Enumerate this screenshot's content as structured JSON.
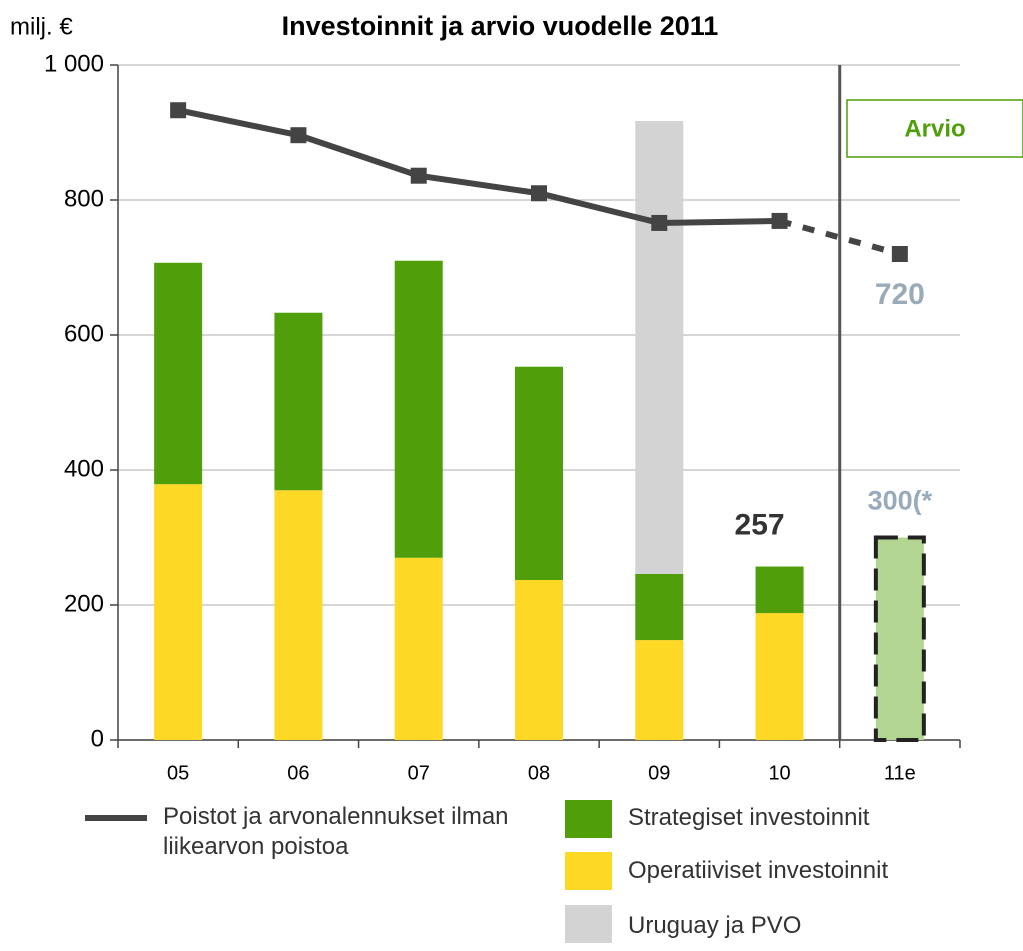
{
  "chart_data": {
    "type": "bar",
    "title": "Investoinnit ja arvio vuodelle 2011",
    "y_label": "milj. €",
    "categories": [
      "05",
      "06",
      "07",
      "08",
      "09",
      "10",
      "11e"
    ],
    "ylim": [
      0,
      1000
    ],
    "yticks": [
      0,
      200,
      400,
      600,
      800,
      {
        "value": 1000,
        "label": "1 000"
      }
    ],
    "grid": true,
    "series": [
      {
        "name": "Operatiiviset investoinnit",
        "color": "#fdd825",
        "values": [
          379,
          370,
          270,
          237,
          148,
          188,
          null
        ]
      },
      {
        "name": "Strategiset investoinnit",
        "color": "#4f9e0a",
        "values": [
          328,
          263,
          440,
          316,
          98,
          69,
          null
        ]
      },
      {
        "name": "Uruguay ja PVO",
        "color": "#d3d3d3",
        "values": [
          null,
          null,
          null,
          null,
          671,
          null,
          null
        ]
      },
      {
        "color": "#b2d592",
        "values": [
          null,
          null,
          null,
          null,
          null,
          null,
          300
        ],
        "value_labels": [
          null,
          null,
          null,
          null,
          null,
          null,
          "300(*"
        ],
        "dashed_border": true
      },
      {
        "name": "Poistot ja arvonalennukset ilman liikearvon poistoa",
        "type": "line",
        "color": "#444444",
        "values": [
          933,
          896,
          836,
          810,
          766,
          769,
          720
        ],
        "value_labels": [
          null,
          null,
          null,
          null,
          null,
          null,
          "720"
        ],
        "dashed_after": "10"
      }
    ],
    "annotations": [
      {
        "category": "10",
        "text": "257"
      },
      {
        "category": "11e",
        "text": "Arvio",
        "boxed": true
      }
    ]
  }
}
